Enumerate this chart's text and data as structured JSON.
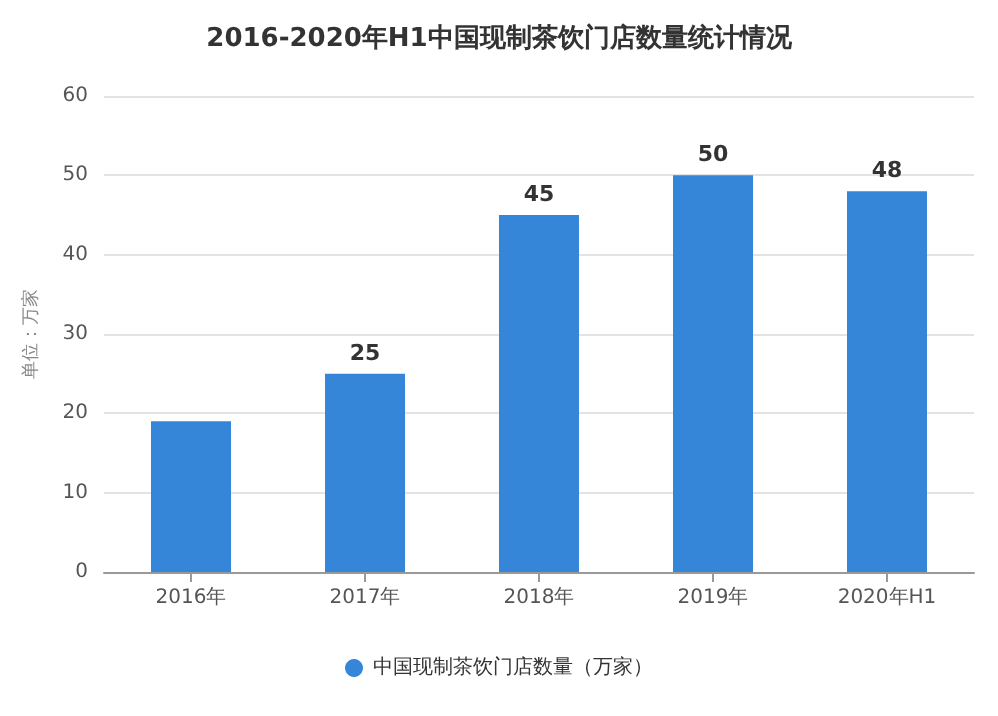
{
  "chart_data": {
    "type": "bar",
    "title": "2016-2020年H1中国现制茶饮门店数量统计情况",
    "ylabel": "单位：万家",
    "categories": [
      "2016年",
      "2017年",
      "2018年",
      "2019年",
      "2020年H1"
    ],
    "series": [
      {
        "name": "中国现制茶饮门店数量（万家）",
        "color": "#3585d8",
        "values": [
          19,
          25,
          45,
          50,
          48
        ],
        "value_labels": [
          null,
          "25",
          "45",
          "50",
          "48"
        ]
      }
    ],
    "ylim": [
      0,
      60
    ],
    "yticks": [
      0,
      10,
      20,
      30,
      40,
      50,
      60
    ],
    "grid": "y",
    "legend": "bottom"
  }
}
